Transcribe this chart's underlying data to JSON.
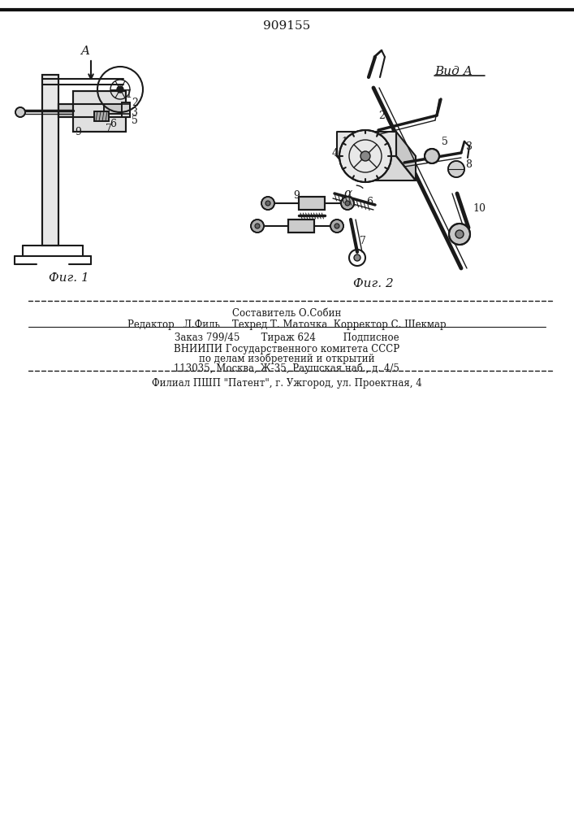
{
  "patent_number": "909155",
  "fig1_label": "Фиг. 1",
  "fig2_label": "Фиг. 2",
  "vid_a_label": "Вид А",
  "footer_line1": "Составитель О.Собин",
  "footer_line2": "Редактор   Л.Филь    Техред Т. Маточка  Корректор С. Шекмар",
  "footer_line3": "Заказ 799/45       Тираж 624         Подписное",
  "footer_line4": "ВНИИПИ Государственного комитета СССР",
  "footer_line5": "по делам изобретений и открытий",
  "footer_line6": "113035, Москва, Ж-35, Раушская наб., д. 4/5",
  "footer_line7": "Филиал ПШП \"Патент\", г. Ужгород, ул. Проектная, 4",
  "bg_color": "#ffffff",
  "line_color": "#1a1a1a",
  "top_border_color": "#111111"
}
